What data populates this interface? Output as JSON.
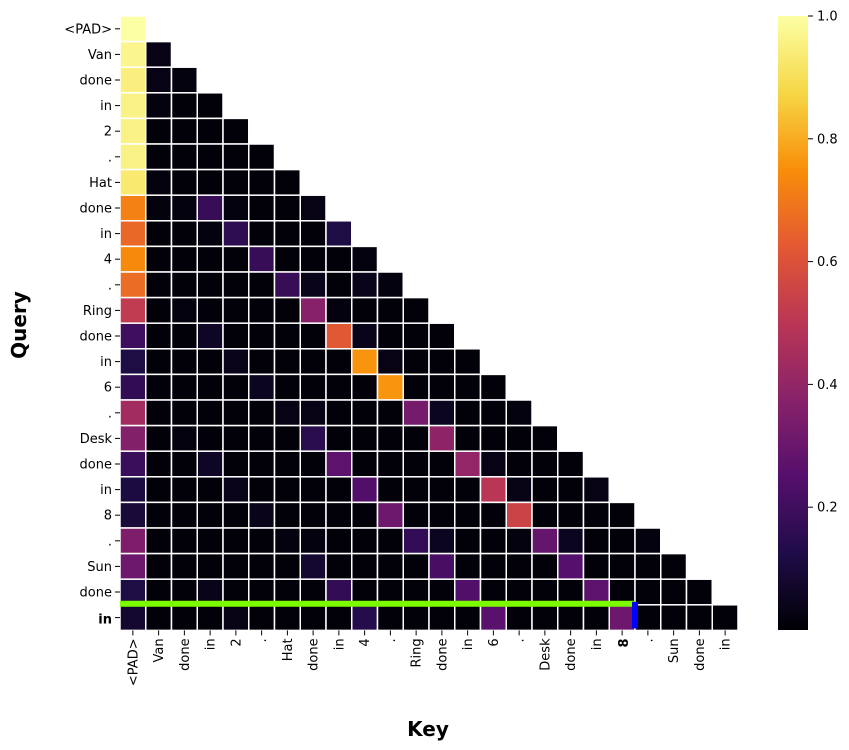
{
  "chart_data": {
    "type": "heatmap",
    "title": "",
    "xlabel": "Key",
    "ylabel": "Query",
    "tokens": [
      "<PAD>",
      "Van",
      "done",
      "in",
      "2",
      ".",
      "Hat",
      "done",
      "in",
      "4",
      ".",
      "Ring",
      "done",
      "in",
      "6",
      ".",
      "Desk",
      "done",
      "in",
      "8",
      ".",
      "Sun",
      "done",
      "in"
    ],
    "highlight_query_index": 23,
    "highlight_key_index": 19,
    "highlight_query_color": "#008000",
    "highlight_key_color": "#0000ff",
    "highlight_line_color": "#7cfc00",
    "highlight_marker_color": "#0000ff",
    "colorbar": {
      "min": 0,
      "max": 1,
      "ticks": [
        0.2,
        0.4,
        0.6,
        0.8,
        1.0
      ],
      "tick_labels": [
        "0.2",
        "0.4",
        "0.6",
        "0.8",
        "1.0"
      ],
      "colormap": "inferno"
    },
    "matrix": [
      [
        1.0
      ],
      [
        0.97,
        0.03
      ],
      [
        0.95,
        0.03,
        0.02
      ],
      [
        0.96,
        0.02,
        0.01,
        0.01
      ],
      [
        0.96,
        0.01,
        0.01,
        0.01,
        0.01
      ],
      [
        0.96,
        0.01,
        0.01,
        0.01,
        0.01,
        0.01
      ],
      [
        0.93,
        0.02,
        0.01,
        0.01,
        0.01,
        0.01,
        0.01
      ],
      [
        0.72,
        0.02,
        0.02,
        0.18,
        0.02,
        0.01,
        0.01,
        0.03
      ],
      [
        0.66,
        0.01,
        0.01,
        0.02,
        0.16,
        0.01,
        0.01,
        0.01,
        0.12
      ],
      [
        0.74,
        0.01,
        0.01,
        0.01,
        0.01,
        0.18,
        0.01,
        0.01,
        0.01,
        0.02
      ],
      [
        0.67,
        0.01,
        0.01,
        0.01,
        0.01,
        0.01,
        0.18,
        0.04,
        0.01,
        0.04,
        0.02
      ],
      [
        0.52,
        0.01,
        0.02,
        0.01,
        0.01,
        0.01,
        0.01,
        0.37,
        0.02,
        0.01,
        0.01,
        0.01
      ],
      [
        0.2,
        0.01,
        0.01,
        0.06,
        0.01,
        0.01,
        0.01,
        0.01,
        0.62,
        0.04,
        0.01,
        0.01,
        0.01
      ],
      [
        0.12,
        0.01,
        0.01,
        0.01,
        0.04,
        0.01,
        0.01,
        0.01,
        0.01,
        0.76,
        0.03,
        0.01,
        0.01,
        0.01
      ],
      [
        0.17,
        0.01,
        0.01,
        0.01,
        0.01,
        0.05,
        0.01,
        0.01,
        0.01,
        0.01,
        0.76,
        0.01,
        0.01,
        0.01,
        0.01
      ],
      [
        0.44,
        0.01,
        0.01,
        0.01,
        0.01,
        0.01,
        0.03,
        0.03,
        0.01,
        0.01,
        0.01,
        0.33,
        0.05,
        0.01,
        0.01,
        0.02
      ],
      [
        0.36,
        0.01,
        0.02,
        0.01,
        0.01,
        0.01,
        0.01,
        0.15,
        0.01,
        0.01,
        0.01,
        0.01,
        0.39,
        0.01,
        0.01,
        0.01,
        0.01
      ],
      [
        0.19,
        0.01,
        0.01,
        0.06,
        0.01,
        0.01,
        0.01,
        0.01,
        0.27,
        0.01,
        0.01,
        0.01,
        0.01,
        0.4,
        0.03,
        0.01,
        0.01,
        0.01
      ],
      [
        0.11,
        0.01,
        0.01,
        0.01,
        0.04,
        0.01,
        0.01,
        0.01,
        0.01,
        0.24,
        0.01,
        0.01,
        0.01,
        0.01,
        0.5,
        0.03,
        0.01,
        0.01,
        0.03
      ],
      [
        0.1,
        0.01,
        0.01,
        0.01,
        0.01,
        0.04,
        0.01,
        0.01,
        0.01,
        0.01,
        0.31,
        0.01,
        0.01,
        0.01,
        0.01,
        0.55,
        0.01,
        0.01,
        0.01,
        0.01
      ],
      [
        0.35,
        0.01,
        0.01,
        0.01,
        0.01,
        0.01,
        0.02,
        0.02,
        0.01,
        0.01,
        0.01,
        0.17,
        0.05,
        0.01,
        0.01,
        0.02,
        0.29,
        0.05,
        0.01,
        0.01,
        0.02
      ],
      [
        0.31,
        0.01,
        0.01,
        0.01,
        0.01,
        0.01,
        0.01,
        0.08,
        0.01,
        0.01,
        0.01,
        0.01,
        0.22,
        0.01,
        0.01,
        0.01,
        0.01,
        0.25,
        0.01,
        0.01,
        0.01,
        0.01
      ],
      [
        0.12,
        0.01,
        0.01,
        0.04,
        0.01,
        0.01,
        0.01,
        0.01,
        0.17,
        0.01,
        0.01,
        0.01,
        0.01,
        0.24,
        0.01,
        0.01,
        0.01,
        0.01,
        0.27,
        0.01,
        0.01,
        0.01,
        0.01
      ],
      [
        0.08,
        0.01,
        0.01,
        0.01,
        0.03,
        0.01,
        0.01,
        0.01,
        0.01,
        0.14,
        0.01,
        0.01,
        0.01,
        0.01,
        0.26,
        0.01,
        0.01,
        0.01,
        0.01,
        0.31,
        0.01,
        0.01,
        0.01,
        0.01
      ]
    ]
  }
}
